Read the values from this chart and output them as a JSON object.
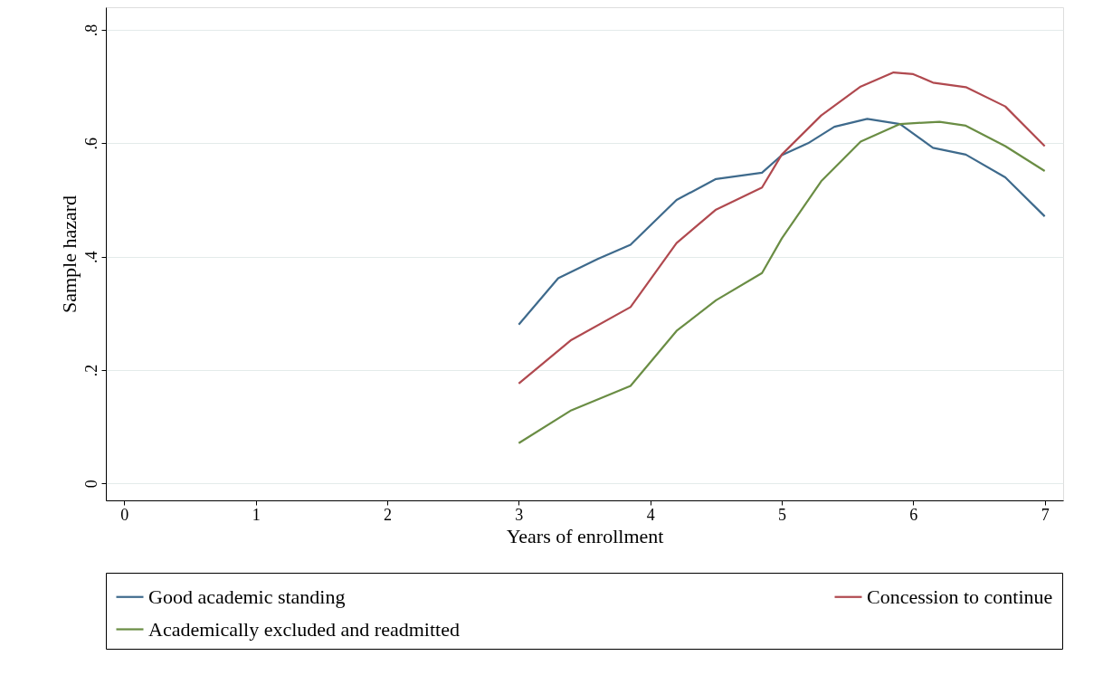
{
  "chart_data": {
    "type": "line",
    "xlabel": "Years of enrollment",
    "ylabel": "Sample hazard",
    "xlim": [
      -0.14,
      7.14
    ],
    "xticks": [
      0,
      1,
      2,
      3,
      4,
      5,
      6,
      7
    ],
    "ylim": [
      -0.03,
      0.84
    ],
    "yticks": [
      {
        "value": 0,
        "label": "0"
      },
      {
        "value": 0.2,
        "label": ".2"
      },
      {
        "value": 0.4,
        "label": ".4"
      },
      {
        "value": 0.6,
        "label": ".6"
      },
      {
        "value": 0.8,
        "label": ".8"
      }
    ],
    "grid": "y",
    "legend": "bottom",
    "marker": "none",
    "line_style": "solid",
    "series": [
      {
        "name": "Good academic standing",
        "color": "#3e6a8c",
        "x": [
          3.0,
          3.3,
          3.6,
          3.85,
          4.2,
          4.5,
          4.85,
          5.0,
          5.2,
          5.4,
          5.65,
          5.9,
          6.15,
          6.4,
          6.7,
          7.0
        ],
        "values": [
          0.28,
          0.362,
          0.396,
          0.421,
          0.5,
          0.537,
          0.548,
          0.579,
          0.6,
          0.629,
          0.643,
          0.634,
          0.592,
          0.58,
          0.54,
          0.471
        ]
      },
      {
        "name": "Concession to continue",
        "color": "#b0494f",
        "x": [
          3.0,
          3.4,
          3.85,
          4.2,
          4.5,
          4.85,
          5.0,
          5.3,
          5.6,
          5.85,
          6.0,
          6.15,
          6.4,
          6.7,
          7.0
        ],
        "values": [
          0.176,
          0.253,
          0.311,
          0.424,
          0.483,
          0.522,
          0.58,
          0.649,
          0.7,
          0.725,
          0.722,
          0.707,
          0.699,
          0.665,
          0.595
        ]
      },
      {
        "name": "Academically excluded and readmitted",
        "color": "#6a8d44",
        "x": [
          3.0,
          3.4,
          3.85,
          4.2,
          4.5,
          4.85,
          5.0,
          5.3,
          5.6,
          5.9,
          6.2,
          6.4,
          6.7,
          7.0
        ],
        "values": [
          0.071,
          0.129,
          0.172,
          0.269,
          0.323,
          0.371,
          0.432,
          0.533,
          0.603,
          0.634,
          0.638,
          0.631,
          0.595,
          0.551
        ]
      }
    ]
  }
}
